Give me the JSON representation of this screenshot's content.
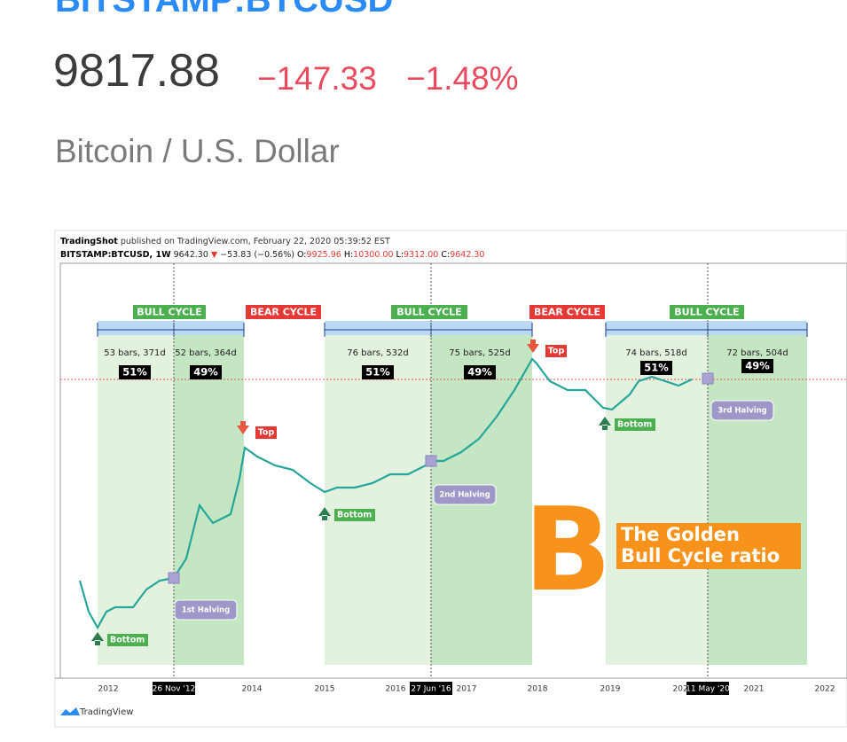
{
  "header": {
    "symbol": "BITSTAMP:BTCUSD",
    "price": "9817.88",
    "change": "−147.33",
    "change_percent": "−1.48%",
    "name": "Bitcoin / U.S. Dollar"
  },
  "chart_image": {
    "published": [
      "TradingShot",
      " published on TradingView.com, February 22, 2020 05:39:52 EST"
    ],
    "ohlc": [
      "BITSTAMP:BTCUSD, 1W",
      " 9642.30 ",
      "▼",
      " −53.83 (−0.56%) ",
      "O:",
      "9925.96",
      " H:",
      "10300.00",
      " L:",
      "9312.00",
      " C:",
      "9642.30"
    ],
    "cycles": [
      "BULL CYCLE",
      "BEAR CYCLE",
      "BULL CYCLE",
      "BEAR CYCLE",
      "BULL CYCLE"
    ],
    "segments": [
      {
        "bars": "53 bars, 371d",
        "percent": "51%"
      },
      {
        "bars": "52 bars, 364d",
        "percent": "49%"
      },
      {
        "bars": "76 bars, 532d",
        "percent": "51%"
      },
      {
        "bars": "75 bars, 525d",
        "percent": "49%"
      },
      {
        "bars": "74 bars, 518d",
        "percent": "51%"
      },
      {
        "bars": "72 bars, 504d",
        "percent": "49%"
      }
    ],
    "halvings": [
      "1st Halving",
      "2nd Halving",
      "3rd Halving"
    ],
    "tops": [
      "Top",
      "Top"
    ],
    "bottoms": [
      "Bottom",
      "Bottom",
      "Bottom"
    ],
    "x_labels": [
      "2012",
      "26 Nov '12",
      "2014",
      "2015",
      "2016",
      "27 Jun '16",
      "2017",
      "2018",
      "2019",
      "2020",
      "11 May '20",
      "2021",
      "2022"
    ],
    "callout": [
      "The Golden",
      "Bull Cycle ratio"
    ],
    "logo": "B",
    "watermark": "TradingView"
  }
}
